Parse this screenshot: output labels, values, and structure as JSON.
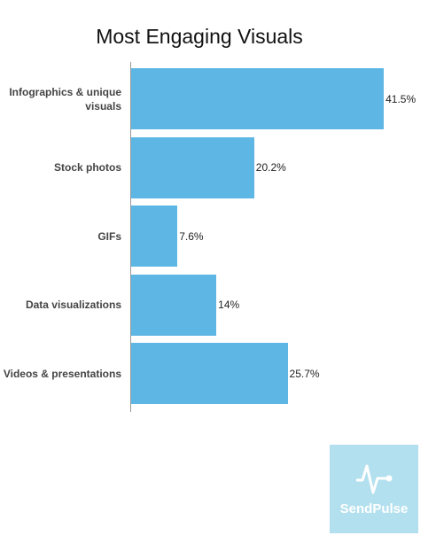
{
  "chart_data": {
    "type": "bar",
    "orientation": "horizontal",
    "title": "Most Engaging Visuals",
    "categories": [
      "Infographics & unique visuals",
      "Stock photos",
      "GIFs",
      "Data visualizations",
      "Videos & presentations"
    ],
    "values": [
      41.5,
      20.2,
      7.6,
      14,
      25.7
    ],
    "value_labels": [
      "41.5%",
      "20.2%",
      "7.6%",
      "14%",
      "25.7%"
    ],
    "color": "#5db6e4"
  },
  "logo": "SendPulse"
}
